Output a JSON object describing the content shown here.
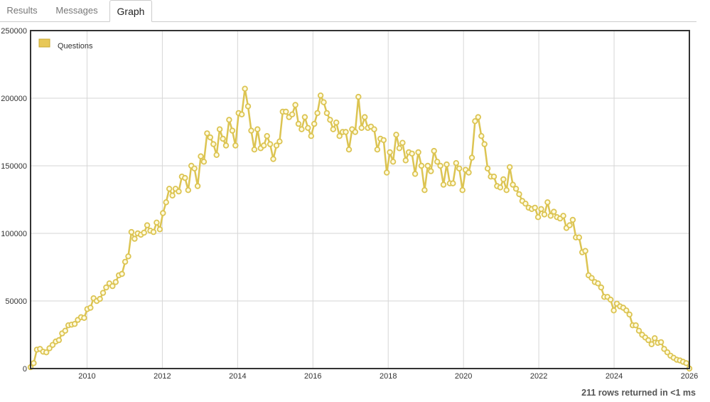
{
  "tabs": [
    {
      "label": "Results",
      "active": false
    },
    {
      "label": "Messages",
      "active": false
    },
    {
      "label": "Graph",
      "active": true
    }
  ],
  "status": {
    "text": "211 rows returned in <1 ms"
  },
  "colors": {
    "series": "#dcc452",
    "series_fill": "#fffbe0",
    "legend_swatch": "#e8c858",
    "grid": "#d6d6d6",
    "frame": "#333333"
  },
  "chart_data": {
    "type": "line",
    "title": "",
    "xlabel": "",
    "ylabel": "",
    "xlim": [
      2008.5,
      2026.0
    ],
    "ylim": [
      0,
      250000
    ],
    "x_ticks": [
      2010,
      2012,
      2014,
      2016,
      2018,
      2020,
      2022,
      2024,
      2026
    ],
    "y_ticks": [
      0,
      50000,
      100000,
      150000,
      200000,
      250000
    ],
    "grid": true,
    "legend": "top-left",
    "x_start": "2008-07",
    "x_step": "1 month",
    "series": [
      {
        "name": "Questions",
        "values": [
          1000,
          4000,
          14000,
          14500,
          12500,
          12000,
          15000,
          17500,
          20000,
          21000,
          26000,
          28000,
          32000,
          32500,
          33000,
          36000,
          38000,
          37500,
          44000,
          45000,
          52000,
          50000,
          51500,
          56000,
          60000,
          63000,
          61000,
          64000,
          69000,
          70000,
          79000,
          83000,
          101000,
          96000,
          100000,
          99000,
          100500,
          106000,
          102000,
          101000,
          108000,
          103000,
          115000,
          123000,
          133000,
          128000,
          133000,
          131000,
          142000,
          141000,
          132000,
          150000,
          148000,
          135000,
          157000,
          153000,
          174000,
          171000,
          166000,
          158000,
          177000,
          170000,
          165000,
          184000,
          176000,
          165000,
          189000,
          188000,
          207000,
          194000,
          176000,
          162000,
          177000,
          163000,
          165000,
          172000,
          166000,
          155000,
          165000,
          168000,
          190000,
          190000,
          186000,
          188000,
          195000,
          181000,
          177000,
          186000,
          178000,
          172000,
          181000,
          189000,
          202000,
          197000,
          189000,
          184000,
          177000,
          182000,
          172000,
          175000,
          175000,
          162000,
          177000,
          175000,
          201000,
          178000,
          186000,
          178000,
          179000,
          177000,
          162000,
          170000,
          169000,
          145000,
          160000,
          153000,
          173000,
          163000,
          167000,
          154000,
          160000,
          159000,
          144000,
          160000,
          150000,
          132000,
          150000,
          146000,
          161000,
          153000,
          150000,
          136000,
          151000,
          137000,
          137000,
          152000,
          148000,
          132000,
          147000,
          145000,
          156000,
          183000,
          186000,
          172000,
          166000,
          148000,
          142000,
          142000,
          135000,
          134000,
          140000,
          132000,
          149000,
          136000,
          133000,
          129000,
          124000,
          122000,
          119000,
          118000,
          119000,
          112000,
          118000,
          114000,
          123000,
          113000,
          116000,
          112000,
          111000,
          113000,
          104000,
          106000,
          110000,
          97000,
          97000,
          86000,
          87000,
          69000,
          67000,
          64000,
          63000,
          60000,
          53000,
          53000,
          51000,
          43000,
          48000,
          46000,
          45000,
          43000,
          40000,
          32000,
          32000,
          28000,
          25000,
          23000,
          21000,
          18000,
          22500,
          19000,
          19500,
          14500,
          12000,
          9500,
          8000,
          6500,
          6000,
          5000,
          4000,
          0
        ]
      }
    ]
  }
}
